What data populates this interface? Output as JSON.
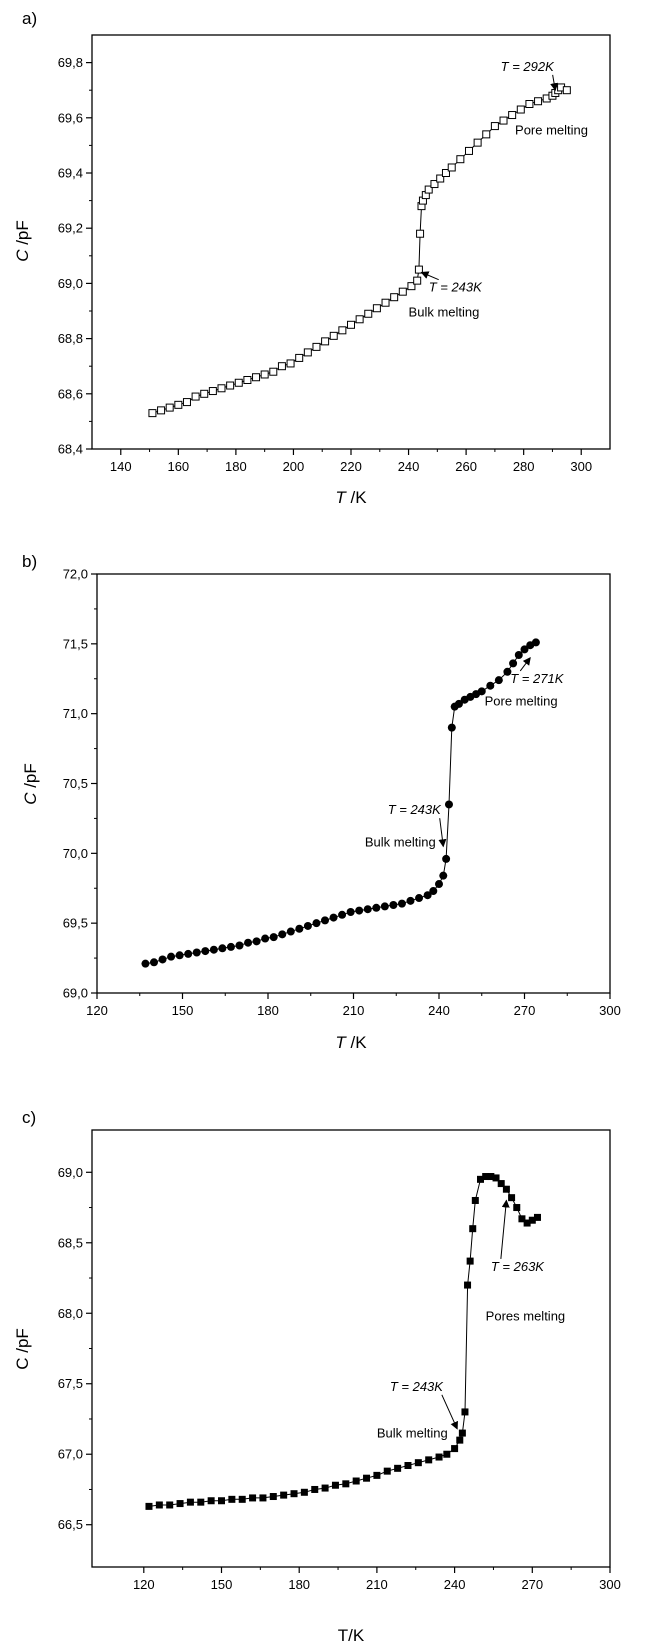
{
  "chart_data": [
    {
      "type": "scatter",
      "panel_label": "a)",
      "xlabel_italic": "T",
      "xlabel_rest": " /K",
      "ylabel_italic": "C",
      "ylabel_rest": " /pF",
      "xlim": [
        130,
        310
      ],
      "ylim": [
        68.4,
        69.9
      ],
      "x_ticks": [
        140,
        160,
        180,
        200,
        220,
        240,
        260,
        280,
        300
      ],
      "x_tick_labels": [
        "140",
        "160",
        "180",
        "200",
        "220",
        "240",
        "260",
        "280",
        "300"
      ],
      "y_ticks": [
        68.4,
        68.6,
        68.8,
        69.0,
        69.2,
        69.4,
        69.6,
        69.8
      ],
      "y_tick_labels": [
        "68,4",
        "68,6",
        "68,8",
        "69,0",
        "69,2",
        "69,4",
        "69,6",
        "69,8"
      ],
      "marker": "open-square",
      "series": [
        {
          "x": [
            151,
            154,
            157,
            160,
            163,
            166,
            169,
            172,
            175,
            178,
            181,
            184,
            187,
            190,
            193,
            196,
            199,
            202,
            205,
            208,
            211,
            214,
            217,
            220,
            223,
            226,
            229,
            232,
            235,
            238,
            241,
            243,
            243.6,
            244.0,
            244.5,
            245,
            246,
            247,
            249,
            251,
            253,
            255,
            258,
            261,
            264,
            267,
            270,
            273,
            276,
            279,
            282,
            285,
            288,
            290,
            291,
            292,
            293,
            295
          ],
          "y": [
            68.53,
            68.54,
            68.55,
            68.56,
            68.57,
            68.59,
            68.6,
            68.61,
            68.62,
            68.63,
            68.64,
            68.65,
            68.66,
            68.67,
            68.68,
            68.7,
            68.71,
            68.73,
            68.75,
            68.77,
            68.79,
            68.81,
            68.83,
            68.85,
            68.87,
            68.89,
            68.91,
            68.93,
            68.95,
            68.97,
            68.99,
            69.01,
            69.05,
            69.18,
            69.28,
            69.3,
            69.32,
            69.34,
            69.36,
            69.38,
            69.4,
            69.42,
            69.45,
            69.48,
            69.51,
            69.54,
            69.57,
            69.59,
            69.61,
            69.63,
            69.65,
            69.66,
            69.67,
            69.68,
            69.69,
            69.7,
            69.71,
            69.7
          ]
        }
      ],
      "annotations": [
        {
          "text": "T = 292K",
          "style": "italic",
          "x": 272,
          "y": 69.77,
          "arrow_to": [
            291,
            69.7
          ]
        },
        {
          "text": "Pore melting",
          "style": "normal",
          "x": 277,
          "y": 69.54
        },
        {
          "text": "T = 243K",
          "style": "italic",
          "x": 247,
          "y": 68.97,
          "arrow_to": [
            244.5,
            69.04
          ]
        },
        {
          "text": "Bulk melting",
          "style": "normal",
          "x": 240,
          "y": 68.88
        }
      ]
    },
    {
      "type": "line",
      "panel_label": "b)",
      "xlabel_italic": "T",
      "xlabel_rest": " /K",
      "ylabel_italic": "C",
      "ylabel_rest": " /pF",
      "xlim": [
        120,
        300
      ],
      "ylim": [
        69.0,
        72.0
      ],
      "x_ticks": [
        120,
        150,
        180,
        210,
        240,
        270,
        300
      ],
      "x_tick_labels": [
        "120",
        "150",
        "180",
        "210",
        "240",
        "270",
        "300"
      ],
      "y_ticks": [
        69.0,
        69.5,
        70.0,
        70.5,
        71.0,
        71.5,
        72.0
      ],
      "y_tick_labels": [
        "69,0",
        "69,5",
        "70,0",
        "70,5",
        "71,0",
        "71,5",
        "72,0"
      ],
      "marker": "filled-circle",
      "series": [
        {
          "x": [
            137,
            140,
            143,
            146,
            149,
            152,
            155,
            158,
            161,
            164,
            167,
            170,
            173,
            176,
            179,
            182,
            185,
            188,
            191,
            194,
            197,
            200,
            203,
            206,
            209,
            212,
            215,
            218,
            221,
            224,
            227,
            230,
            233,
            236,
            238,
            240,
            241.5,
            242.5,
            243.5,
            244.5,
            245.5,
            247,
            249,
            251,
            253,
            255,
            258,
            261,
            264,
            266,
            268,
            270,
            272,
            274
          ],
          "y": [
            69.21,
            69.22,
            69.24,
            69.26,
            69.27,
            69.28,
            69.29,
            69.3,
            69.31,
            69.32,
            69.33,
            69.34,
            69.36,
            69.37,
            69.39,
            69.4,
            69.42,
            69.44,
            69.46,
            69.48,
            69.5,
            69.52,
            69.54,
            69.56,
            69.58,
            69.59,
            69.6,
            69.61,
            69.62,
            69.63,
            69.64,
            69.66,
            69.68,
            69.7,
            69.73,
            69.78,
            69.84,
            69.96,
            70.35,
            70.9,
            71.05,
            71.07,
            71.1,
            71.12,
            71.14,
            71.16,
            71.2,
            71.24,
            71.3,
            71.36,
            71.42,
            71.46,
            71.49,
            71.51
          ]
        }
      ],
      "annotations": [
        {
          "text": "T = 271K",
          "style": "italic",
          "x": 265,
          "y": 71.22,
          "arrow_to": [
            272,
            71.4
          ]
        },
        {
          "text": "Pore melting",
          "style": "normal",
          "x": 256,
          "y": 71.06
        },
        {
          "text": "T = 243K",
          "style": "italic",
          "x": 222,
          "y": 70.28,
          "arrow_to": [
            241.5,
            70.05
          ]
        },
        {
          "text": "Bulk melting",
          "style": "normal",
          "x": 214,
          "y": 70.05
        }
      ]
    },
    {
      "type": "line",
      "panel_label": "c)",
      "xlabel_italic": "",
      "xlabel_rest": "T/K",
      "ylabel_italic": "",
      "ylabel_rest": "C /pF",
      "xlim": [
        100,
        300
      ],
      "ylim": [
        66.2,
        69.3
      ],
      "x_ticks": [
        120,
        150,
        180,
        210,
        240,
        270,
        300
      ],
      "x_tick_labels": [
        "120",
        "150",
        "180",
        "210",
        "240",
        "270",
        "300"
      ],
      "y_ticks": [
        66.5,
        67.0,
        67.5,
        68.0,
        68.5,
        69.0
      ],
      "y_tick_labels": [
        "66,5",
        "67,0",
        "67,5",
        "68,0",
        "68,5",
        "69,0"
      ],
      "marker": "filled-square",
      "series": [
        {
          "x": [
            122,
            126,
            130,
            134,
            138,
            142,
            146,
            150,
            154,
            158,
            162,
            166,
            170,
            174,
            178,
            182,
            186,
            190,
            194,
            198,
            202,
            206,
            210,
            214,
            218,
            222,
            226,
            230,
            234,
            237,
            240,
            242,
            243,
            244,
            245,
            246,
            247,
            248,
            250,
            252,
            254,
            256,
            258,
            260,
            262,
            264,
            266,
            268,
            270,
            272
          ],
          "y": [
            66.63,
            66.64,
            66.64,
            66.65,
            66.66,
            66.66,
            66.67,
            66.67,
            66.68,
            66.68,
            66.69,
            66.69,
            66.7,
            66.71,
            66.72,
            66.73,
            66.75,
            66.76,
            66.78,
            66.79,
            66.81,
            66.83,
            66.85,
            66.88,
            66.9,
            66.92,
            66.94,
            66.96,
            66.98,
            67.0,
            67.04,
            67.1,
            67.15,
            67.3,
            68.2,
            68.37,
            68.6,
            68.8,
            68.95,
            68.97,
            68.97,
            68.96,
            68.92,
            68.88,
            68.82,
            68.75,
            68.67,
            68.64,
            68.66,
            68.68
          ]
        }
      ],
      "annotations": [
        {
          "text": "T = 263K",
          "style": "italic",
          "x": 254,
          "y": 68.3,
          "arrow_to": [
            260,
            68.8
          ]
        },
        {
          "text": "Pores melting",
          "style": "normal",
          "x": 252,
          "y": 67.95
        },
        {
          "text": "T = 243K",
          "style": "italic",
          "x": 215,
          "y": 67.45,
          "arrow_to": [
            241,
            67.18
          ]
        },
        {
          "text": "Bulk melting",
          "style": "normal",
          "x": 210,
          "y": 67.12
        }
      ]
    }
  ]
}
